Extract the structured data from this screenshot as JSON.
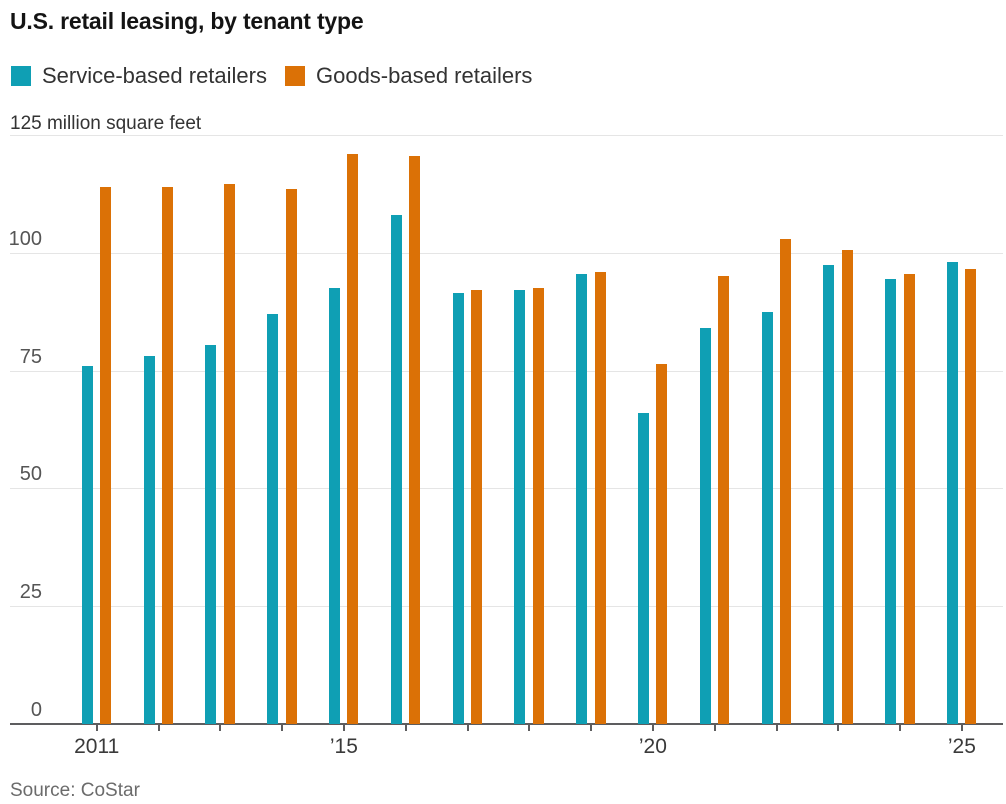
{
  "title": "U.S. retail leasing, by tenant type",
  "legend": {
    "items": [
      {
        "label": "Service-based retailers",
        "color": "#0f9fb4"
      },
      {
        "label": "Goods-based retailers",
        "color": "#db7106"
      }
    ]
  },
  "axis": {
    "unit_label": "125 million square feet",
    "y_tick_labels": [
      "0",
      "25",
      "50",
      "75",
      "100"
    ],
    "x_tick_labels": [
      "2011",
      "",
      "",
      "",
      "’15",
      "",
      "",
      "",
      "",
      "’20",
      "",
      "",
      "",
      "",
      "’25"
    ]
  },
  "source": "Source: CoStar",
  "colors": {
    "service": "#0f9fb4",
    "goods": "#db7106",
    "gridline": "#e5e5e5",
    "axis": "#5d5d5f"
  },
  "chart_data": {
    "type": "bar",
    "title": "U.S. retail leasing, by tenant type",
    "ylabel": "million square feet",
    "xlabel": "",
    "categories": [
      2011,
      2012,
      2013,
      2014,
      2015,
      2016,
      2017,
      2018,
      2019,
      2020,
      2021,
      2022,
      2023,
      2024,
      2025
    ],
    "series": [
      {
        "name": "Service-based retailers",
        "color": "#0f9fb4",
        "values": [
          76,
          78,
          80.5,
          87,
          92.5,
          108,
          91.5,
          92,
          95.5,
          66,
          84,
          87.5,
          97.5,
          94.5,
          98
        ]
      },
      {
        "name": "Goods-based retailers",
        "color": "#db7106",
        "values": [
          114,
          114,
          114.5,
          113.5,
          121,
          120.5,
          92,
          92.5,
          96,
          76.5,
          95,
          103,
          100.5,
          95.5,
          96.5
        ]
      }
    ],
    "ylim": [
      0,
      125
    ],
    "yticks": [
      0,
      25,
      50,
      75,
      100,
      125
    ],
    "grid": true,
    "legend_position": "top-left"
  }
}
